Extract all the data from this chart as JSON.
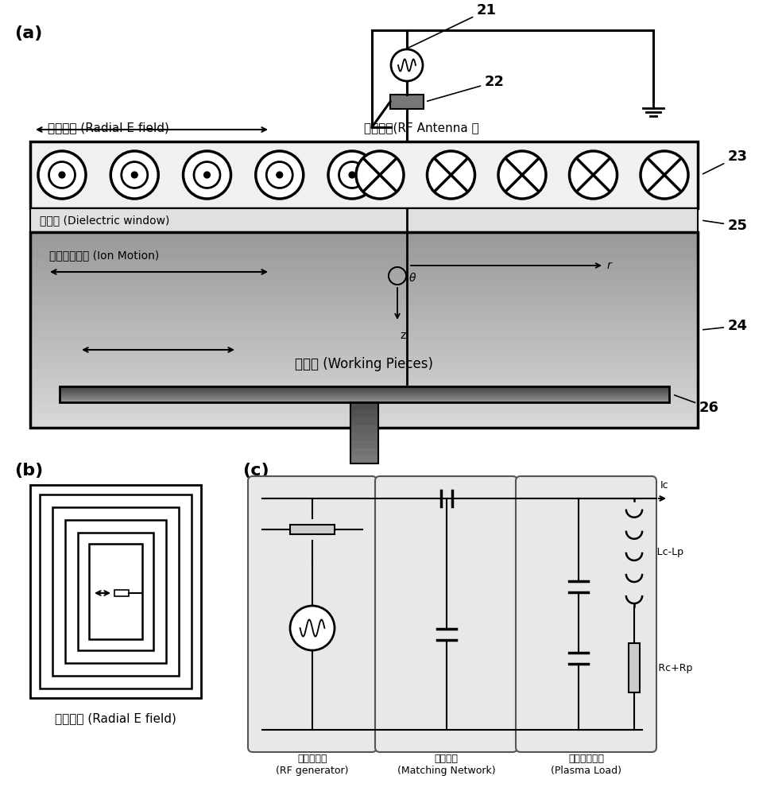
{
  "bg_color": "#ffffff",
  "title_a": "(a)",
  "title_b": "(b)",
  "title_c": "(c)",
  "label_radial": "径向电场 (Radial E field)",
  "label_antenna": "射频天线(RF Antenna ）",
  "label_dielectric": "电介质 (Dielectric window)",
  "label_ion_motion": "离子运动方向 (Ion Motion)",
  "label_working": "样品架 (Working Pieces)",
  "label_radial_b": "径向电场 (Radial E field)",
  "label_rf_gen": "射频发生器\n(RF generator)",
  "label_match": "匹配网络\n(Matching Network)",
  "label_plasma": "等离子体负载\n(Plasma Load)",
  "num_21": "21",
  "num_22": "22",
  "num_23": "23",
  "num_24": "24",
  "num_25": "25",
  "num_26": "26"
}
